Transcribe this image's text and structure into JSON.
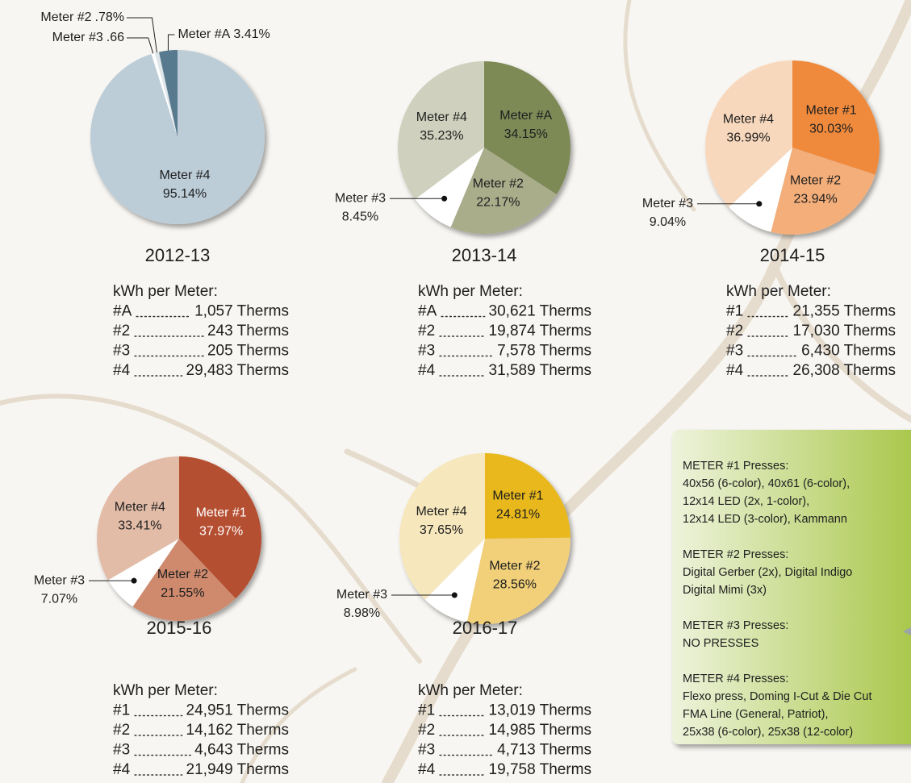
{
  "chart_data": [
    {
      "type": "pie",
      "title": "2012-13",
      "categories": [
        "Meter #4",
        "Meter #3",
        "Meter #2",
        "Meter #A"
      ],
      "values": [
        95.14,
        0.66,
        0.78,
        3.41
      ],
      "value_labels": [
        "95.14%",
        ".66",
        ".78%",
        "3.41%"
      ],
      "colors": [
        "#bccdd8",
        "#ffffff",
        "#dfe6ea",
        "#587a8e"
      ]
    },
    {
      "type": "pie",
      "title": "2013-14",
      "categories": [
        "Meter #A",
        "Meter #2",
        "Meter #3",
        "Meter #4"
      ],
      "values": [
        34.15,
        22.17,
        8.45,
        35.23
      ],
      "value_labels": [
        "34.15%",
        "22.17%",
        "8.45%",
        "35.23%"
      ],
      "colors": [
        "#7d8a57",
        "#a9ad8a",
        "#ffffff",
        "#cfd1be"
      ]
    },
    {
      "type": "pie",
      "title": "2014-15",
      "categories": [
        "Meter #1",
        "Meter #2",
        "Meter #3",
        "Meter #4"
      ],
      "values": [
        30.03,
        23.94,
        9.04,
        36.99
      ],
      "value_labels": [
        "30.03%",
        "23.94%",
        "9.04%",
        "36.99%"
      ],
      "colors": [
        "#ef8a3e",
        "#f3ae7a",
        "#ffffff",
        "#f8d8bd"
      ]
    },
    {
      "type": "pie",
      "title": "2015-16",
      "categories": [
        "Meter #1",
        "Meter #2",
        "Meter #3",
        "Meter #4"
      ],
      "values": [
        37.97,
        21.55,
        7.07,
        33.41
      ],
      "value_labels": [
        "37.97%",
        "21.55%",
        "7.07%",
        "33.41%"
      ],
      "colors": [
        "#b54f32",
        "#cf8a6e",
        "#ffffff",
        "#e3bca8"
      ]
    },
    {
      "type": "pie",
      "title": "2016-17",
      "categories": [
        "Meter #1",
        "Meter #2",
        "Meter #3",
        "Meter #4"
      ],
      "values": [
        24.81,
        28.56,
        8.98,
        37.65
      ],
      "value_labels": [
        "24.81%",
        "28.56%",
        "8.98%",
        "37.65%"
      ],
      "colors": [
        "#e8b81f",
        "#f2d07a",
        "#ffffff",
        "#f6e7bd"
      ]
    }
  ],
  "meter_lists": [
    {
      "title": "kWh per Meter:",
      "rows": [
        {
          "meter": "#A",
          "amount": "1,057 Therms"
        },
        {
          "meter": "#2",
          "amount": "243 Therms"
        },
        {
          "meter": "#3",
          "amount": "205 Therms"
        },
        {
          "meter": "#4",
          "amount": "29,483 Therms"
        }
      ]
    },
    {
      "title": "kWh per Meter:",
      "rows": [
        {
          "meter": "#A",
          "amount": "30,621 Therms"
        },
        {
          "meter": "#2",
          "amount": "19,874 Therms"
        },
        {
          "meter": "#3",
          "amount": "7,578 Therms"
        },
        {
          "meter": "#4",
          "amount": "31,589 Therms"
        }
      ]
    },
    {
      "title": "kWh per Meter:",
      "rows": [
        {
          "meter": "#1",
          "amount": "21,355 Therms"
        },
        {
          "meter": "#2",
          "amount": "17,030 Therms"
        },
        {
          "meter": "#3",
          "amount": "6,430 Therms"
        },
        {
          "meter": "#4",
          "amount": "26,308 Therms"
        }
      ]
    },
    {
      "title": "kWh per Meter:",
      "rows": [
        {
          "meter": "#1",
          "amount": "24,951 Therms"
        },
        {
          "meter": "#2",
          "amount": "14,162 Therms"
        },
        {
          "meter": "#3",
          "amount": "4,643 Therms"
        },
        {
          "meter": "#4",
          "amount": "21,949 Therms"
        }
      ]
    },
    {
      "title": "kWh per Meter:",
      "rows": [
        {
          "meter": "#1",
          "amount": "13,019 Therms"
        },
        {
          "meter": "#2",
          "amount": "14,985 Therms"
        },
        {
          "meter": "#3",
          "amount": "4,713 Therms"
        },
        {
          "meter": "#4",
          "amount": "19,758 Therms"
        }
      ]
    }
  ],
  "presses": {
    "groups": [
      {
        "heading": "METER #1 Presses:",
        "lines": [
          "40x56 (6-color), 40x61 (6-color),",
          "12x14 LED (2x, 1-color),",
          "12x14 LED (3-color), Kammann"
        ]
      },
      {
        "heading": "METER #2 Presses:",
        "lines": [
          "Digital Gerber (2x), Digital Indigo",
          "Digital Mimi (3x)"
        ]
      },
      {
        "heading": "METER #3 Presses:",
        "lines": [
          "NO PRESSES"
        ]
      },
      {
        "heading": "METER #4 Presses:",
        "lines": [
          "Flexo press, Doming I-Cut & Die Cut",
          "FMA Line (General, Patriot),",
          "25x38 (6-color), 25x38 (12-color)"
        ]
      }
    ]
  }
}
